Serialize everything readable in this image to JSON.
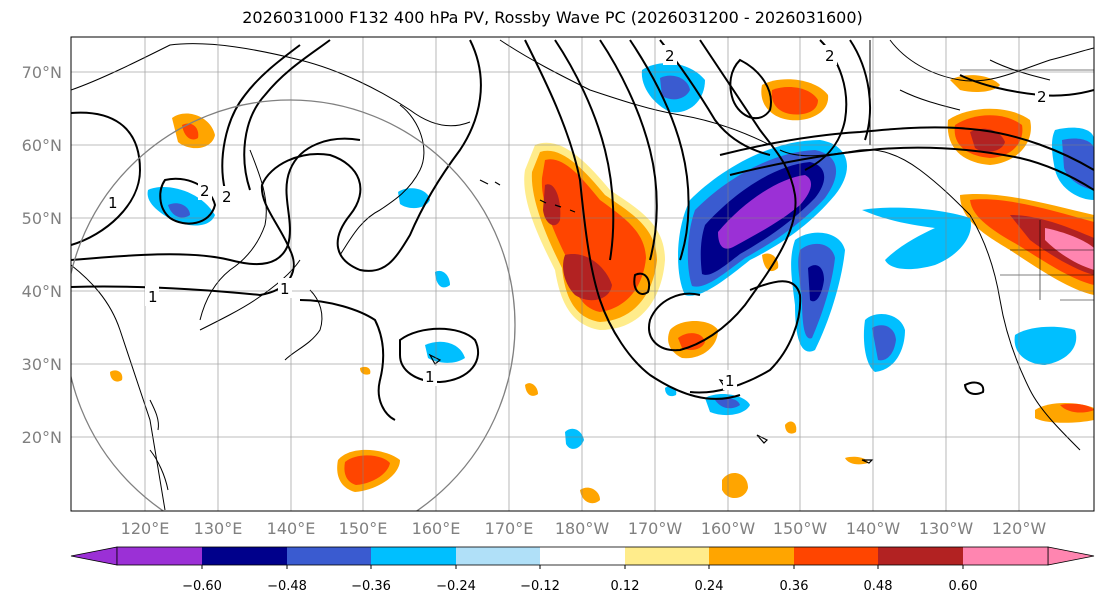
{
  "title": "2026031000 F132 400 hPa PV, Rossby Wave PC (2026031200 - 2026031600)",
  "lat_labels": [
    "70°N",
    "60°N",
    "50°N",
    "40°N",
    "30°N",
    "20°N"
  ],
  "lon_labels": [
    "120°E",
    "130°E",
    "140°E",
    "150°E",
    "160°E",
    "170°E",
    "180°W",
    "170°W",
    "160°W",
    "150°W",
    "140°W",
    "130°W",
    "120°W"
  ],
  "contour_labels": [
    "1",
    "2",
    "1",
    "1",
    "2",
    "1",
    "2",
    "2",
    "1",
    "2"
  ],
  "colorbar": {
    "colors": [
      "#9b30d6",
      "#00008b",
      "#3a5bd0",
      "#00bfff",
      "#b0e0f8",
      "#ffffff",
      "#ffec8b",
      "#ffa500",
      "#ff4500",
      "#b22222",
      "#ff85b0"
    ],
    "tick_labels": [
      "−0.60",
      "−0.48",
      "−0.36",
      "−0.24",
      "−0.12",
      "0.12",
      "0.24",
      "0.36",
      "0.48",
      "0.60"
    ]
  }
}
